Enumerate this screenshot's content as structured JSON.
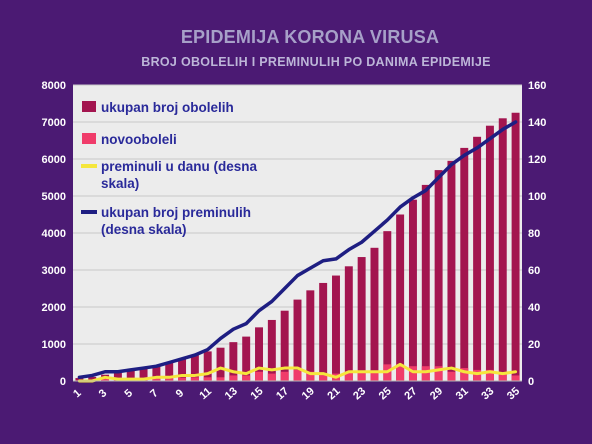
{
  "chart_data": {
    "type": "bar",
    "title": "EPIDEMIJA KORONA VIRUSA",
    "subtitle": "BROJ OBOLELIH I PREMINULIH PO DANIMA EPIDEMIJE",
    "x": [
      1,
      2,
      3,
      4,
      5,
      6,
      7,
      8,
      9,
      10,
      11,
      12,
      13,
      14,
      15,
      16,
      17,
      18,
      19,
      20,
      21,
      22,
      23,
      24,
      25,
      26,
      27,
      28,
      29,
      30,
      31,
      32,
      33,
      34,
      35
    ],
    "x_tick_labels": [
      "1",
      "3",
      "5",
      "7",
      "9",
      "11",
      "13",
      "15",
      "17",
      "19",
      "21",
      "23",
      "25",
      "27",
      "29",
      "31",
      "33",
      "35"
    ],
    "ylim": [
      0,
      8000
    ],
    "y_ticks": [
      0,
      1000,
      2000,
      3000,
      4000,
      5000,
      6000,
      7000,
      8000
    ],
    "y2lim": [
      0,
      160
    ],
    "y2_ticks": [
      0,
      20,
      40,
      60,
      80,
      100,
      120,
      140,
      160
    ],
    "grid": true,
    "legend_position": "top-left",
    "series": [
      {
        "name": "ukupan broj obolelih",
        "type": "bar",
        "axis": "left",
        "color": "#a3154f",
        "values": [
          80,
          110,
          170,
          240,
          300,
          360,
          430,
          510,
          600,
          700,
          800,
          900,
          1050,
          1200,
          1450,
          1650,
          1900,
          2200,
          2450,
          2650,
          2850,
          3100,
          3350,
          3600,
          4050,
          4500,
          4900,
          5300,
          5700,
          5950,
          6300,
          6600,
          6900,
          7100,
          7250
        ]
      },
      {
        "name": "novooboleli",
        "type": "bar",
        "axis": "left",
        "color": "#f03c6a",
        "values": [
          20,
          30,
          60,
          70,
          60,
          60,
          70,
          80,
          90,
          100,
          100,
          100,
          150,
          150,
          250,
          200,
          250,
          300,
          250,
          200,
          200,
          250,
          250,
          250,
          450,
          450,
          400,
          400,
          400,
          250,
          350,
          300,
          300,
          200,
          150
        ]
      },
      {
        "name": "preminuli u danu (desna skala)",
        "type": "line",
        "axis": "right",
        "color": "#f5e63c",
        "values": [
          0,
          0,
          2,
          1,
          1,
          1,
          2,
          2,
          3,
          3,
          4,
          7,
          5,
          4,
          7,
          6,
          7,
          7,
          4,
          4,
          2,
          5,
          5,
          5,
          5,
          9,
          5,
          5,
          6,
          7,
          5,
          4,
          5,
          4,
          5
        ]
      },
      {
        "name": "ukupan broj preminulih (desna skala)",
        "type": "line",
        "axis": "right",
        "color": "#1e1e82",
        "values": [
          2,
          3,
          5,
          5,
          6,
          7,
          8,
          10,
          12,
          14,
          17,
          23,
          28,
          31,
          38,
          43,
          50,
          57,
          61,
          65,
          66,
          71,
          75,
          81,
          87,
          94,
          99,
          103,
          110,
          117,
          122,
          126,
          131,
          136,
          140
        ]
      }
    ]
  }
}
